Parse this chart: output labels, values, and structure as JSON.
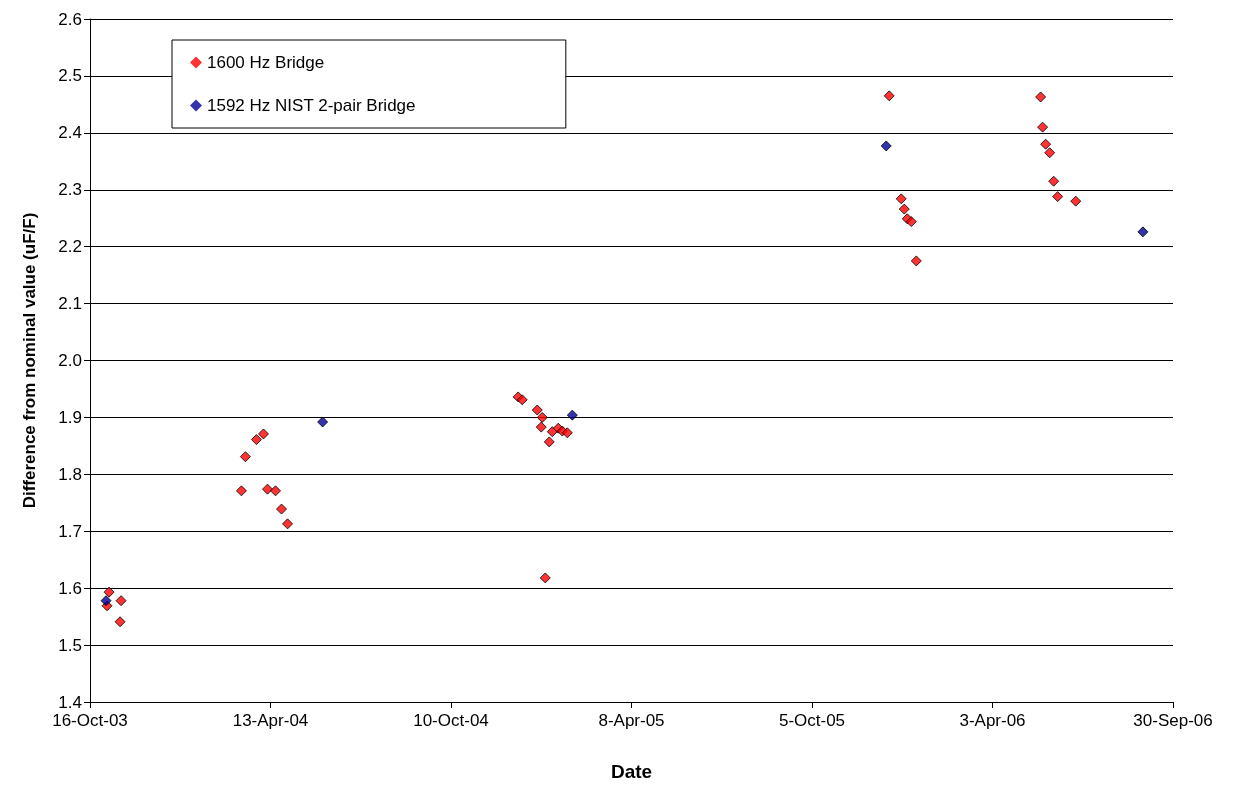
{
  "chart_data": {
    "type": "scatter",
    "xlabel": "Date",
    "ylabel": "Difference from nominal value (uF/F)",
    "series": [
      {
        "name": "1600 Hz Bridge",
        "color": "#ff0000",
        "x": [
          "2003-11-04",
          "2003-11-02",
          "2003-11-16",
          "2003-11-15",
          "2004-03-15",
          "2004-03-19",
          "2004-03-30",
          "2004-04-06",
          "2004-04-10",
          "2004-04-18",
          "2004-04-24",
          "2004-04-30",
          "2004-12-16",
          "2004-12-20",
          "2005-01-04",
          "2005-01-09",
          "2005-01-08",
          "2005-01-16",
          "2005-01-12",
          "2005-01-19",
          "2005-01-25",
          "2005-01-29",
          "2005-02-03",
          "2005-12-21",
          "2006-01-02",
          "2006-01-05",
          "2006-01-08",
          "2006-01-12",
          "2006-01-17",
          "2006-05-21",
          "2006-05-23",
          "2006-05-26",
          "2006-05-30",
          "2006-06-03",
          "2006-06-07",
          "2006-06-25"
        ],
        "values": [
          1.593,
          1.569,
          1.578,
          1.541,
          1.771,
          1.831,
          1.861,
          1.871,
          1.774,
          1.771,
          1.739,
          1.713,
          1.936,
          1.931,
          1.913,
          1.9,
          1.883,
          1.857,
          1.618,
          1.875,
          1.881,
          1.876,
          1.873,
          2.465,
          2.284,
          2.266,
          2.249,
          2.244,
          2.175,
          2.463,
          2.41,
          2.38,
          2.365,
          2.315,
          2.288,
          2.28
        ]
      },
      {
        "name": "1592 Hz NIST 2-pair Bridge",
        "color": "#000099",
        "x": [
          "2003-11-01",
          "2004-06-04",
          "2005-02-08",
          "2005-12-18",
          "2006-08-31"
        ],
        "values": [
          1.578,
          1.892,
          1.904,
          2.377,
          2.226
        ]
      }
    ],
    "xlim": [
      "2003-10-16",
      "2006-09-30"
    ],
    "xticks": [
      {
        "value": "2003-10-16",
        "label": "16-Oct-03"
      },
      {
        "value": "2004-04-13",
        "label": "13-Apr-04"
      },
      {
        "value": "2004-10-10",
        "label": "10-Oct-04"
      },
      {
        "value": "2005-04-08",
        "label": "8-Apr-05"
      },
      {
        "value": "2005-10-05",
        "label": "5-Oct-05"
      },
      {
        "value": "2006-04-03",
        "label": "3-Apr-06"
      },
      {
        "value": "2006-09-30",
        "label": "30-Sep-06"
      }
    ],
    "ylim": [
      1.4,
      2.6
    ],
    "yticks": [
      1.4,
      1.5,
      1.6,
      1.7,
      1.8,
      1.9,
      {
        "value": 2,
        "label": "2.0"
      },
      2.1,
      2.2,
      2.3,
      2.4,
      2.5,
      2.6
    ],
    "grid": "y",
    "legend": "top left",
    "marker": "diamond"
  }
}
